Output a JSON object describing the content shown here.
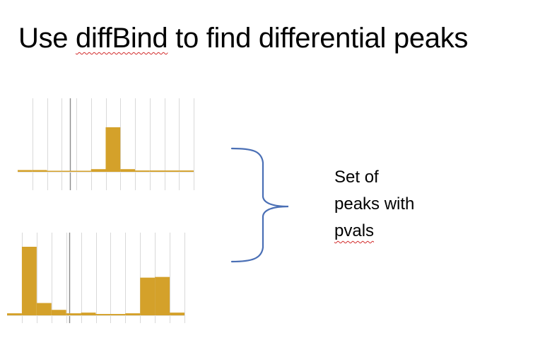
{
  "slide": {
    "title_parts": {
      "before": "Use ",
      "tool": "diffBind",
      "after": " to find differential peaks"
    },
    "label_lines": {
      "line1": "Set of",
      "line2": "peaks with",
      "line3": "pvals"
    },
    "colors": {
      "bar": "#D4A12A",
      "grid": "#D9D9D9",
      "marker": "#8C8C8C",
      "brace": "#4A6FB5",
      "text": "#000000",
      "spellcheck": "#D22A2A"
    },
    "icons": {
      "brace": "right-curly-brace"
    }
  },
  "chart_data": [
    {
      "type": "bar",
      "values": [
        0.04,
        0.04,
        0.02,
        0.02,
        0.02,
        0.06,
        1.0,
        0.06,
        0.03,
        0.03,
        0.03,
        0.03
      ],
      "ylim": [
        0,
        1.0
      ],
      "grid": true
    },
    {
      "type": "bar",
      "values": [
        0.03,
        1.0,
        0.18,
        0.08,
        0.03,
        0.04,
        0.02,
        0.02,
        0.03,
        0.55,
        0.56,
        0.04
      ],
      "ylim": [
        0,
        1.0
      ],
      "grid": true
    }
  ]
}
